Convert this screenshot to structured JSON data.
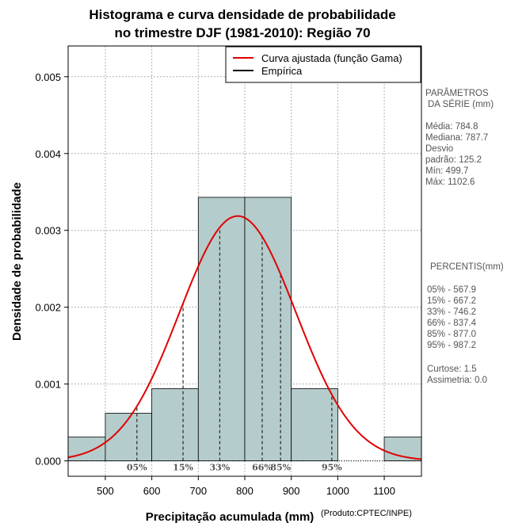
{
  "chart_data": {
    "type": "histogram",
    "title_lines": [
      "Histograma e curva densidade de probabilidade",
      "no trimestre DJF (1981-2010): Região 70"
    ],
    "xlabel": "Precipitação acumulada (mm)",
    "ylabel": "Densidade de probabilidade",
    "credit": "(Produto:CPTEC/INPE)",
    "xlim": [
      420,
      1180
    ],
    "ylim": [
      -0.0002,
      0.0054
    ],
    "x_ticks": [
      500,
      600,
      700,
      800,
      900,
      1000,
      1100
    ],
    "y_ticks": [
      0.0,
      0.001,
      0.002,
      0.003,
      0.004,
      0.005
    ],
    "y_tick_labels": [
      "0.000",
      "0.001",
      "0.002",
      "0.003",
      "0.004",
      "0.005"
    ],
    "grid": true,
    "bins": [
      {
        "x0": 400,
        "x1": 500,
        "density": 0.00031
      },
      {
        "x0": 500,
        "x1": 600,
        "density": 0.00062
      },
      {
        "x0": 600,
        "x1": 700,
        "density": 0.00094
      },
      {
        "x0": 700,
        "x1": 800,
        "density": 0.00343
      },
      {
        "x0": 800,
        "x1": 900,
        "density": 0.00343
      },
      {
        "x0": 900,
        "x1": 1000,
        "density": 0.00094
      },
      {
        "x0": 1100,
        "x1": 1200,
        "density": 0.00031
      }
    ],
    "bar_color": "#b5cccc",
    "curve": {
      "name": "Curva ajustada (função Gama)",
      "color": "#e00000",
      "mean": 784.8,
      "sd": 125.2
    },
    "empirical_legend": "Empírica",
    "percentiles": [
      {
        "label": "05%",
        "value": 567.9
      },
      {
        "label": "15%",
        "value": 667.2
      },
      {
        "label": "33%",
        "value": 746.2
      },
      {
        "label": "66%",
        "value": 837.4
      },
      {
        "label": "85%",
        "value": 877.0
      },
      {
        "label": "95%",
        "value": 987.2
      }
    ]
  },
  "side_panel": {
    "parametros_title": [
      "PARÂMETROS",
      "DA SÉRIE (mm)"
    ],
    "parametros": [
      "Média:  784.8",
      "Mediana:  787.7",
      "Desvio",
      "padrão:  125.2",
      "Mín:  499.7",
      "Máx:  1102.6"
    ],
    "percentis_title": "PERCENTIS(mm)",
    "percentis": [
      "05% -  567.9",
      "15% -  667.2",
      "33% -  746.2",
      "66% -  837.4",
      "85% -  877.0",
      "95% -  987.2"
    ],
    "stats": [
      "Curtose:  1.5",
      "Assimetria:  0.0"
    ]
  }
}
